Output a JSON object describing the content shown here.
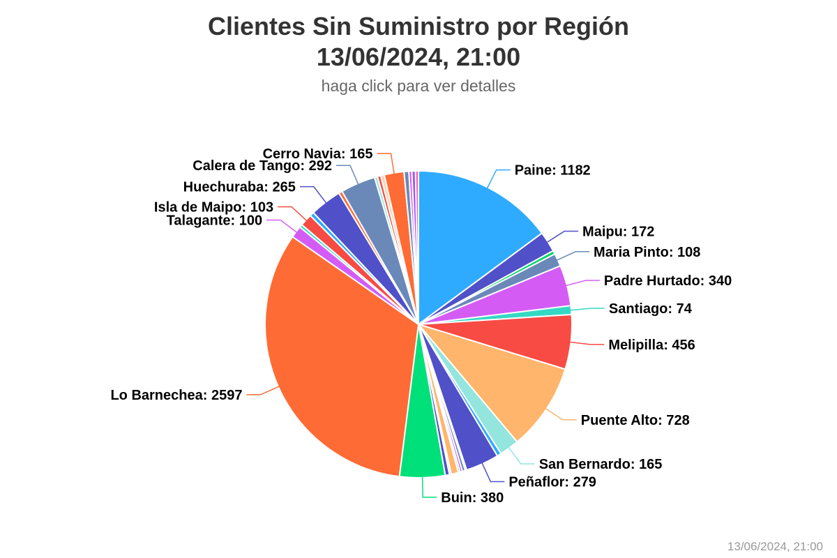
{
  "header": {
    "title_line1": "Clientes Sin Suministro por Región",
    "title_line2": "13/06/2024, 21:00",
    "subtitle": "haga click para ver detalles"
  },
  "footer": {
    "timestamp": "13/06/2024, 21:00"
  },
  "chart_data": {
    "type": "pie",
    "title": "Clientes Sin Suministro por Región",
    "subtitle": "haga click para ver detalles",
    "start_angle_deg": 0,
    "slices": [
      {
        "name": "Paine",
        "value": 1182,
        "color": "#2eabff",
        "label": "Paine: 1182"
      },
      {
        "name": "Maipu",
        "value": 172,
        "color": "#5050c8",
        "label": "Maipu: 172"
      },
      {
        "name": "",
        "value": 30,
        "color": "#00d46a",
        "label": ""
      },
      {
        "name": "Maria Pinto",
        "value": 108,
        "color": "#6a89b9",
        "label": "Maria Pinto: 108"
      },
      {
        "name": "Padre Hurtado",
        "value": 340,
        "color": "#d45cf5",
        "label": "Padre Hurtado: 340"
      },
      {
        "name": "Santiago",
        "value": 74,
        "color": "#34d9c3",
        "label": "Santiago: 74"
      },
      {
        "name": "Melipilla",
        "value": 456,
        "color": "#f74b44",
        "label": "Melipilla: 456"
      },
      {
        "name": "Puente Alto",
        "value": 728,
        "color": "#ffb56b",
        "label": "Puente Alto: 728"
      },
      {
        "name": "San Bernardo",
        "value": 165,
        "color": "#93e5de",
        "label": "San Bernardo: 165"
      },
      {
        "name": "",
        "value": 35,
        "color": "#2eabff",
        "label": ""
      },
      {
        "name": "Peñaflor",
        "value": 279,
        "color": "#5050c8",
        "label": "Peñaflor: 279"
      },
      {
        "name": "",
        "value": 12,
        "color": "#00d46a",
        "label": ""
      },
      {
        "name": "",
        "value": 25,
        "color": "#6a89b9",
        "label": ""
      },
      {
        "name": "",
        "value": 20,
        "color": "#d45cf5",
        "label": ""
      },
      {
        "name": "",
        "value": 15,
        "color": "#34d9c3",
        "label": ""
      },
      {
        "name": "",
        "value": 60,
        "color": "#ffb56b",
        "label": ""
      },
      {
        "name": "",
        "value": 15,
        "color": "#93e5de",
        "label": ""
      },
      {
        "name": "",
        "value": 35,
        "color": "#5050c8",
        "label": ""
      },
      {
        "name": "Buin",
        "value": 380,
        "color": "#00e07a",
        "label": "Buin: 380"
      },
      {
        "name": "Lo Barnechea",
        "value": 2597,
        "color": "#ff6b35",
        "label": "Lo Barnechea: 2597"
      },
      {
        "name": "Talagante",
        "value": 100,
        "color": "#d45cf5",
        "label": "Talagante: 100"
      },
      {
        "name": "",
        "value": 25,
        "color": "#34d9c3",
        "label": ""
      },
      {
        "name": "Isla de Maipo",
        "value": 103,
        "color": "#f74b44",
        "label": "Isla de Maipo: 103"
      },
      {
        "name": "",
        "value": 35,
        "color": "#2eabff",
        "label": ""
      },
      {
        "name": "Huechuraba",
        "value": 265,
        "color": "#5050c8",
        "label": "Huechuraba: 265"
      },
      {
        "name": "",
        "value": 30,
        "color": "#ff6b35",
        "label": ""
      },
      {
        "name": "Calera de Tango",
        "value": 292,
        "color": "#6a89b9",
        "label": "Calera de Tango: 292"
      },
      {
        "name": "",
        "value": 25,
        "color": "#93e5de",
        "label": ""
      },
      {
        "name": "",
        "value": 28,
        "color": "#f74b44",
        "label": ""
      },
      {
        "name": "",
        "value": 30,
        "color": "#ffd2b0",
        "label": ""
      },
      {
        "name": "Cerro Navia",
        "value": 165,
        "color": "#ff6b35",
        "label": "Cerro Navia: 165"
      },
      {
        "name": "",
        "value": 40,
        "color": "#6a89b9",
        "label": ""
      },
      {
        "name": "",
        "value": 25,
        "color": "#d45cf5",
        "label": ""
      },
      {
        "name": "",
        "value": 30,
        "color": "#a052ff",
        "label": ""
      },
      {
        "name": "",
        "value": 25,
        "color": "#ff5ab0",
        "label": ""
      }
    ]
  }
}
